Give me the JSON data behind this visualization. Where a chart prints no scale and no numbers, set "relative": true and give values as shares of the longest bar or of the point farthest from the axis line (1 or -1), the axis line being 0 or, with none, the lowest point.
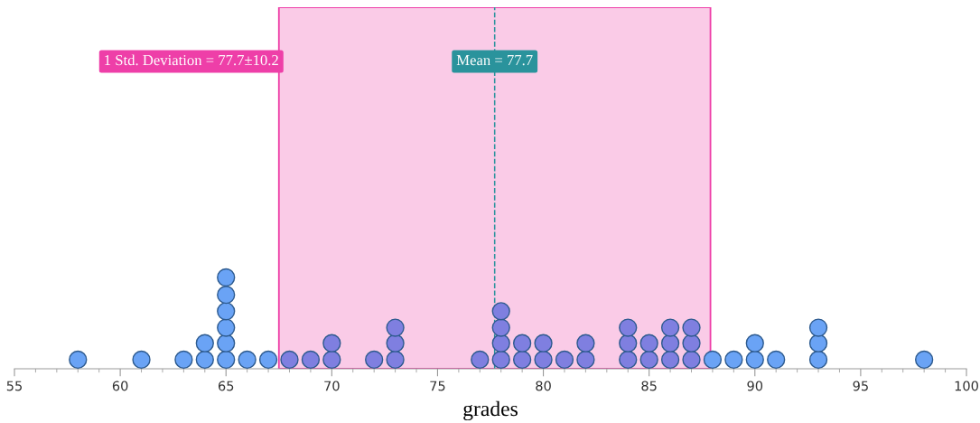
{
  "chart_data": {
    "type": "scatter",
    "xlabel": "grades",
    "relative": true,
    "marker": "circle",
    "grid": false,
    "legend": false,
    "xlim": [
      55,
      100
    ],
    "xticks": [
      55,
      60,
      65,
      70,
      75,
      80,
      85,
      90,
      95,
      100
    ],
    "x": [
      58,
      61,
      63,
      64,
      64,
      65,
      65,
      65,
      65,
      65,
      65,
      66,
      67,
      68,
      69,
      70,
      70,
      72,
      73,
      73,
      73,
      77,
      78,
      78,
      78,
      78,
      79,
      79,
      80,
      80,
      81,
      82,
      82,
      84,
      84,
      84,
      85,
      85,
      86,
      86,
      86,
      87,
      87,
      87,
      88,
      89,
      90,
      90,
      91,
      93,
      93,
      93,
      98
    ],
    "values": [
      0.1,
      0.1,
      0.1,
      0.1,
      0.28,
      0.1,
      0.28,
      0.45,
      0.63,
      0.81,
      1,
      0.1,
      0.1,
      0.1,
      0.1,
      0.1,
      0.28,
      0.1,
      0.1,
      0.28,
      0.45,
      0.1,
      0.1,
      0.28,
      0.45,
      0.63,
      0.1,
      0.28,
      0.1,
      0.28,
      0.1,
      0.1,
      0.28,
      0.1,
      0.28,
      0.45,
      0.1,
      0.28,
      0.1,
      0.28,
      0.45,
      0.1,
      0.28,
      0.45,
      0.1,
      0.1,
      0.1,
      0.28,
      0.1,
      0.1,
      0.28,
      0.45,
      0.1
    ],
    "colors": [
      "#6aa3f5",
      "#6aa3f5",
      "#6aa3f5",
      "#6aa3f5",
      "#6aa3f5",
      "#6aa3f5",
      "#6aa3f5",
      "#6aa3f5",
      "#6aa3f5",
      "#6aa3f5",
      "#6aa3f5",
      "#6aa3f5",
      "#6aa3f5",
      "#7f7fe0",
      "#7f7fe0",
      "#7f7fe0",
      "#7f7fe0",
      "#7f7fe0",
      "#7f7fe0",
      "#7f7fe0",
      "#7f7fe0",
      "#7f7fe0",
      "#7f7fe0",
      "#7f7fe0",
      "#7f7fe0",
      "#7f7fe0",
      "#7f7fe0",
      "#7f7fe0",
      "#7f7fe0",
      "#7f7fe0",
      "#7f7fe0",
      "#7f7fe0",
      "#7f7fe0",
      "#7f7fe0",
      "#7f7fe0",
      "#7f7fe0",
      "#7f7fe0",
      "#7f7fe0",
      "#7f7fe0",
      "#7f7fe0",
      "#7f7fe0",
      "#7f7fe0",
      "#7f7fe0",
      "#7f7fe0",
      "#6aa3f5",
      "#6aa3f5",
      "#6aa3f5",
      "#6aa3f5",
      "#6aa3f5",
      "#6aa3f5",
      "#6aa3f5",
      "#6aa3f5",
      "#6aa3f5"
    ],
    "bands": [
      {
        "axis": "x",
        "from": 67.5,
        "to": 87.9,
        "label": "1 Std. Deviation = 77.7±10.2",
        "color": "#ee3fa8"
      }
    ],
    "ref_lines": [
      {
        "axis": "x",
        "value": 77.7,
        "label": "Mean = 77.7",
        "color": "#2a939c",
        "line_style": "dashed"
      }
    ]
  }
}
